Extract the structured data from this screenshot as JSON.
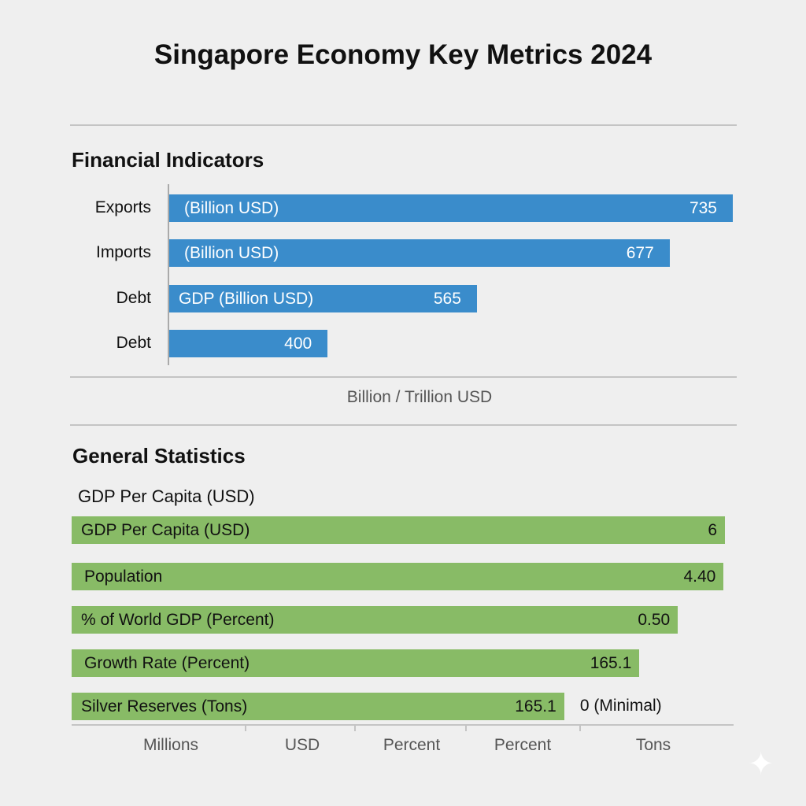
{
  "chart_data": [
    {
      "type": "bar",
      "orientation": "horizontal",
      "title": "Financial Indicators",
      "xlabel": "Billion / Trillion USD",
      "bar_color": "#3a8ccb",
      "bars": [
        {
          "category": "Exports",
          "inner_label": "(Billion USD)",
          "value": "735",
          "fill": 1.0
        },
        {
          "category": "Imports",
          "inner_label": "(Billion USD)",
          "value": "677",
          "fill": 0.888
        },
        {
          "category": "Debt",
          "inner_label": "GDP (Billion USD)",
          "value": "565",
          "fill": 0.546
        },
        {
          "category": "Debt",
          "inner_label": "",
          "value": "400",
          "fill": 0.281
        }
      ]
    },
    {
      "type": "bar",
      "orientation": "horizontal",
      "title": "General Statistics",
      "subtitle": "GDP Per Capita (USD)",
      "bar_color": "#88bb66",
      "bars": [
        {
          "inner_label": "GDP Per Capita (USD)",
          "value": "6",
          "fill": 1.0
        },
        {
          "inner_label": "Population",
          "value": "4.40",
          "fill": 0.998
        },
        {
          "inner_label": "% of World GDP (Percent)",
          "value": "0.50",
          "fill": 0.928
        },
        {
          "inner_label": "Growth Rate (Percent)",
          "value": "165.1",
          "fill": 0.869
        },
        {
          "inner_label": "Silver Reserves (Tons)",
          "value": "165.1",
          "outside_label": "0 (Minimal)",
          "fill": 0.754
        }
      ],
      "x_units": [
        "Millions",
        "USD",
        "Percent",
        "Percent",
        "Tons"
      ]
    }
  ],
  "title": "Singapore Economy Key Metrics 2024"
}
